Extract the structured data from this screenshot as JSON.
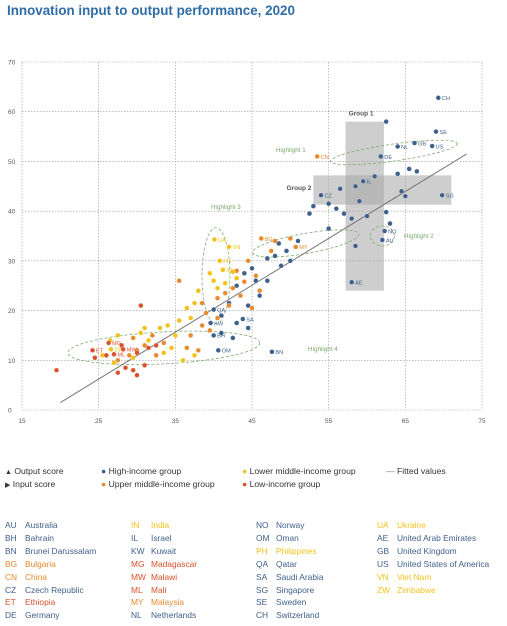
{
  "title": "Innovation input to output performance, 2020",
  "colors": {
    "title": "#2f6da6",
    "high_income": "#3e5f8a",
    "upper_middle": "#e88a2e",
    "lower_middle": "#f2c21b",
    "low_income": "#d9522d",
    "fitted": "#777777",
    "highlight": "#7cab6f",
    "group_box": "#a6a6a6"
  },
  "legend": {
    "output_score": "Output score",
    "input_score": "Input score",
    "high_income": "High-income group",
    "upper_middle": "Upper middle-income group",
    "lower_middle": "Lower middle-income group",
    "low_income": "Low-income group",
    "fitted": "Fitted values"
  },
  "annotations": {
    "group1": "Group 1",
    "group2": "Group 2",
    "highlight1": "Highlight 1",
    "highlight2": "Highlight 2",
    "highlight3": "Highlight 3",
    "highlight4": "Highlight 4"
  },
  "chart_data": {
    "type": "scatter",
    "xlim": [
      15,
      75
    ],
    "ylim": [
      0,
      70
    ],
    "x_ticks": [
      15,
      25,
      35,
      45,
      55,
      65,
      75
    ],
    "y_ticks": [
      0,
      10,
      20,
      30,
      40,
      50,
      60,
      70
    ],
    "grid": true,
    "fitted_line": {
      "x": [
        20,
        73
      ],
      "y": [
        1.5,
        51.5
      ]
    },
    "groups": {
      "high": "High-income group",
      "upper": "Upper middle-income group",
      "lower": "Lower middle-income group",
      "low": "Low-income group"
    },
    "labeled_points": [
      {
        "label": "CH",
        "x": 69.3,
        "y": 62.8,
        "group": "high"
      },
      {
        "label": "SE",
        "x": 69.0,
        "y": 56.0,
        "group": "high"
      },
      {
        "label": "GB",
        "x": 66.2,
        "y": 53.7,
        "group": "high"
      },
      {
        "label": "US",
        "x": 68.5,
        "y": 53.1,
        "group": "high"
      },
      {
        "label": "NL",
        "x": 64.0,
        "y": 53.0,
        "group": "high"
      },
      {
        "label": "DE",
        "x": 61.8,
        "y": 51.0,
        "group": "high"
      },
      {
        "label": "CN",
        "x": 53.5,
        "y": 51.0,
        "group": "upper"
      },
      {
        "label": "IL",
        "x": 59.5,
        "y": 46.0,
        "group": "high"
      },
      {
        "label": "CZ",
        "x": 54.0,
        "y": 43.2,
        "group": "high"
      },
      {
        "label": "SG",
        "x": 69.8,
        "y": 43.2,
        "group": "high"
      },
      {
        "label": "NO",
        "x": 62.3,
        "y": 36.0,
        "group": "high"
      },
      {
        "label": "AU",
        "x": 62.0,
        "y": 34.2,
        "group": "high"
      },
      {
        "label": "BG",
        "x": 46.2,
        "y": 34.5,
        "group": "upper"
      },
      {
        "label": "MY",
        "x": 50.7,
        "y": 32.8,
        "group": "upper"
      },
      {
        "label": "UA",
        "x": 40.1,
        "y": 34.3,
        "group": "lower"
      },
      {
        "label": "VN",
        "x": 42.0,
        "y": 32.8,
        "group": "lower"
      },
      {
        "label": "PH",
        "x": 40.8,
        "y": 30.0,
        "group": "lower"
      },
      {
        "label": "IN",
        "x": 41.2,
        "y": 28.2,
        "group": "lower"
      },
      {
        "label": "AE",
        "x": 58.0,
        "y": 25.7,
        "group": "high"
      },
      {
        "label": "QA",
        "x": 40.0,
        "y": 20.2,
        "group": "high"
      },
      {
        "label": "SA",
        "x": 43.8,
        "y": 18.3,
        "group": "high"
      },
      {
        "label": "KW",
        "x": 39.6,
        "y": 17.5,
        "group": "high"
      },
      {
        "label": "BH",
        "x": 40.0,
        "y": 15.0,
        "group": "high"
      },
      {
        "label": "OM",
        "x": 40.6,
        "y": 12.0,
        "group": "high"
      },
      {
        "label": "BN",
        "x": 47.6,
        "y": 11.7,
        "group": "high"
      },
      {
        "label": "MG",
        "x": 26.3,
        "y": 13.5,
        "group": "low"
      },
      {
        "label": "ZW",
        "x": 26.6,
        "y": 12.2,
        "group": "lower"
      },
      {
        "label": "MW",
        "x": 28.2,
        "y": 12.2,
        "group": "low"
      },
      {
        "label": "ET",
        "x": 24.2,
        "y": 12.0,
        "group": "low"
      },
      {
        "label": "ML",
        "x": 27.0,
        "y": 11.2,
        "group": "low"
      }
    ],
    "other_points": [
      {
        "x": 62.5,
        "y": 58.0,
        "group": "high"
      },
      {
        "x": 65.5,
        "y": 48.5,
        "group": "high"
      },
      {
        "x": 64.0,
        "y": 47.5,
        "group": "high"
      },
      {
        "x": 66.5,
        "y": 48.0,
        "group": "high"
      },
      {
        "x": 61.0,
        "y": 47.0,
        "group": "high"
      },
      {
        "x": 58.5,
        "y": 45.0,
        "group": "high"
      },
      {
        "x": 64.5,
        "y": 44.0,
        "group": "high"
      },
      {
        "x": 65.0,
        "y": 43.0,
        "group": "high"
      },
      {
        "x": 56.5,
        "y": 44.5,
        "group": "high"
      },
      {
        "x": 59.0,
        "y": 42.0,
        "group": "high"
      },
      {
        "x": 55.0,
        "y": 41.5,
        "group": "high"
      },
      {
        "x": 56.0,
        "y": 40.5,
        "group": "high"
      },
      {
        "x": 53.0,
        "y": 41.0,
        "group": "high"
      },
      {
        "x": 52.5,
        "y": 39.5,
        "group": "high"
      },
      {
        "x": 57.0,
        "y": 39.5,
        "group": "high"
      },
      {
        "x": 58.0,
        "y": 38.5,
        "group": "high"
      },
      {
        "x": 62.5,
        "y": 39.8,
        "group": "high"
      },
      {
        "x": 60.0,
        "y": 39.0,
        "group": "high"
      },
      {
        "x": 63.0,
        "y": 37.5,
        "group": "high"
      },
      {
        "x": 55.0,
        "y": 36.5,
        "group": "high"
      },
      {
        "x": 58.5,
        "y": 33.0,
        "group": "high"
      },
      {
        "x": 51.0,
        "y": 34.0,
        "group": "high"
      },
      {
        "x": 48.5,
        "y": 33.5,
        "group": "high"
      },
      {
        "x": 49.5,
        "y": 32.0,
        "group": "high"
      },
      {
        "x": 48.0,
        "y": 31.0,
        "group": "high"
      },
      {
        "x": 47.0,
        "y": 30.5,
        "group": "high"
      },
      {
        "x": 50.0,
        "y": 30.0,
        "group": "high"
      },
      {
        "x": 48.8,
        "y": 29.0,
        "group": "high"
      },
      {
        "x": 45.0,
        "y": 28.5,
        "group": "high"
      },
      {
        "x": 44.0,
        "y": 27.5,
        "group": "high"
      },
      {
        "x": 45.5,
        "y": 26.0,
        "group": "high"
      },
      {
        "x": 43.0,
        "y": 25.0,
        "group": "high"
      },
      {
        "x": 47.0,
        "y": 26.0,
        "group": "high"
      },
      {
        "x": 46.0,
        "y": 23.0,
        "group": "high"
      },
      {
        "x": 42.0,
        "y": 21.5,
        "group": "high"
      },
      {
        "x": 44.5,
        "y": 21.0,
        "group": "high"
      },
      {
        "x": 41.0,
        "y": 19.0,
        "group": "high"
      },
      {
        "x": 43.0,
        "y": 17.5,
        "group": "high"
      },
      {
        "x": 44.5,
        "y": 16.5,
        "group": "high"
      },
      {
        "x": 42.5,
        "y": 14.5,
        "group": "high"
      },
      {
        "x": 41.0,
        "y": 15.5,
        "group": "high"
      },
      {
        "x": 50.0,
        "y": 34.5,
        "group": "upper"
      },
      {
        "x": 48.0,
        "y": 34.0,
        "group": "upper"
      },
      {
        "x": 47.5,
        "y": 32.0,
        "group": "upper"
      },
      {
        "x": 44.5,
        "y": 30.0,
        "group": "upper"
      },
      {
        "x": 43.0,
        "y": 28.0,
        "group": "upper"
      },
      {
        "x": 45.5,
        "y": 27.0,
        "group": "upper"
      },
      {
        "x": 44.0,
        "y": 25.8,
        "group": "upper"
      },
      {
        "x": 42.5,
        "y": 24.5,
        "group": "upper"
      },
      {
        "x": 46.0,
        "y": 24.0,
        "group": "upper"
      },
      {
        "x": 43.5,
        "y": 23.0,
        "group": "upper"
      },
      {
        "x": 41.5,
        "y": 23.5,
        "group": "upper"
      },
      {
        "x": 42.0,
        "y": 21.0,
        "group": "upper"
      },
      {
        "x": 45.0,
        "y": 20.5,
        "group": "upper"
      },
      {
        "x": 40.5,
        "y": 22.5,
        "group": "upper"
      },
      {
        "x": 38.5,
        "y": 21.5,
        "group": "upper"
      },
      {
        "x": 39.0,
        "y": 19.5,
        "group": "upper"
      },
      {
        "x": 40.5,
        "y": 18.5,
        "group": "upper"
      },
      {
        "x": 38.5,
        "y": 17.0,
        "group": "upper"
      },
      {
        "x": 39.5,
        "y": 16.0,
        "group": "upper"
      },
      {
        "x": 37.0,
        "y": 15.0,
        "group": "upper"
      },
      {
        "x": 35.5,
        "y": 26.0,
        "group": "upper"
      },
      {
        "x": 33.5,
        "y": 13.5,
        "group": "upper"
      },
      {
        "x": 32.0,
        "y": 15.0,
        "group": "upper"
      },
      {
        "x": 31.0,
        "y": 13.0,
        "group": "upper"
      },
      {
        "x": 30.0,
        "y": 12.0,
        "group": "upper"
      },
      {
        "x": 32.5,
        "y": 11.0,
        "group": "upper"
      },
      {
        "x": 29.0,
        "y": 11.0,
        "group": "upper"
      },
      {
        "x": 27.5,
        "y": 10.0,
        "group": "upper"
      },
      {
        "x": 29.5,
        "y": 14.5,
        "group": "upper"
      },
      {
        "x": 36.5,
        "y": 12.5,
        "group": "upper"
      },
      {
        "x": 38.0,
        "y": 12.0,
        "group": "upper"
      },
      {
        "x": 39.5,
        "y": 27.5,
        "group": "lower"
      },
      {
        "x": 42.5,
        "y": 27.8,
        "group": "lower"
      },
      {
        "x": 43.0,
        "y": 26.5,
        "group": "lower"
      },
      {
        "x": 40.0,
        "y": 26.0,
        "group": "lower"
      },
      {
        "x": 41.5,
        "y": 25.5,
        "group": "lower"
      },
      {
        "x": 38.0,
        "y": 24.0,
        "group": "lower"
      },
      {
        "x": 40.5,
        "y": 24.5,
        "group": "lower"
      },
      {
        "x": 37.5,
        "y": 21.5,
        "group": "lower"
      },
      {
        "x": 36.5,
        "y": 20.5,
        "group": "lower"
      },
      {
        "x": 35.5,
        "y": 18.0,
        "group": "lower"
      },
      {
        "x": 34.0,
        "y": 17.0,
        "group": "lower"
      },
      {
        "x": 33.0,
        "y": 16.5,
        "group": "lower"
      },
      {
        "x": 37.0,
        "y": 18.5,
        "group": "lower"
      },
      {
        "x": 35.0,
        "y": 15.0,
        "group": "lower"
      },
      {
        "x": 34.5,
        "y": 12.5,
        "group": "lower"
      },
      {
        "x": 31.0,
        "y": 16.5,
        "group": "lower"
      },
      {
        "x": 30.5,
        "y": 15.5,
        "group": "lower"
      },
      {
        "x": 31.5,
        "y": 14.0,
        "group": "lower"
      },
      {
        "x": 33.5,
        "y": 11.5,
        "group": "lower"
      },
      {
        "x": 29.5,
        "y": 10.5,
        "group": "lower"
      },
      {
        "x": 27.5,
        "y": 15.0,
        "group": "lower"
      },
      {
        "x": 26.5,
        "y": 14.0,
        "group": "lower"
      },
      {
        "x": 25.5,
        "y": 11.0,
        "group": "lower"
      },
      {
        "x": 27.0,
        "y": 9.5,
        "group": "lower"
      },
      {
        "x": 37.5,
        "y": 11.0,
        "group": "lower"
      },
      {
        "x": 36.0,
        "y": 10.0,
        "group": "lower"
      },
      {
        "x": 30.5,
        "y": 21.0,
        "group": "low"
      },
      {
        "x": 31.5,
        "y": 12.5,
        "group": "low"
      },
      {
        "x": 30.0,
        "y": 11.5,
        "group": "low"
      },
      {
        "x": 28.5,
        "y": 8.5,
        "group": "low"
      },
      {
        "x": 29.5,
        "y": 8.0,
        "group": "low"
      },
      {
        "x": 27.5,
        "y": 7.5,
        "group": "low"
      },
      {
        "x": 30.0,
        "y": 7.0,
        "group": "low"
      },
      {
        "x": 31.0,
        "y": 9.0,
        "group": "low"
      },
      {
        "x": 28.0,
        "y": 13.0,
        "group": "low"
      },
      {
        "x": 24.5,
        "y": 10.5,
        "group": "low"
      },
      {
        "x": 19.5,
        "y": 8.0,
        "group": "low"
      },
      {
        "x": 32.5,
        "y": 13.0,
        "group": "low"
      },
      {
        "x": 26.0,
        "y": 11.0,
        "group": "low"
      }
    ]
  },
  "country_codes": [
    {
      "code": "AU",
      "name": "Australia",
      "group": "high"
    },
    {
      "code": "BH",
      "name": "Bahrain",
      "group": "high"
    },
    {
      "code": "BN",
      "name": "Brunei Darussalam",
      "group": "high"
    },
    {
      "code": "BG",
      "name": "Bulgaria",
      "group": "upper"
    },
    {
      "code": "CN",
      "name": "China",
      "group": "upper"
    },
    {
      "code": "CZ",
      "name": "Czech Republic",
      "group": "high"
    },
    {
      "code": "ET",
      "name": "Ethiopia",
      "group": "low"
    },
    {
      "code": "DE",
      "name": "Germany",
      "group": "high"
    },
    {
      "code": "IN",
      "name": "India",
      "group": "lower"
    },
    {
      "code": "IL",
      "name": "Israel",
      "group": "high"
    },
    {
      "code": "KW",
      "name": "Kuwait",
      "group": "high"
    },
    {
      "code": "MG",
      "name": "Madagascar",
      "group": "low"
    },
    {
      "code": "MW",
      "name": "Malawi",
      "group": "low"
    },
    {
      "code": "ML",
      "name": "Mali",
      "group": "low"
    },
    {
      "code": "MY",
      "name": "Malaysia",
      "group": "upper"
    },
    {
      "code": "NL",
      "name": "Netherlands",
      "group": "high"
    },
    {
      "code": "NO",
      "name": "Norway",
      "group": "high"
    },
    {
      "code": "OM",
      "name": "Oman",
      "group": "high"
    },
    {
      "code": "PH",
      "name": "Philippines",
      "group": "lower"
    },
    {
      "code": "QA",
      "name": "Qatar",
      "group": "high"
    },
    {
      "code": "SA",
      "name": "Saudi Arabia",
      "group": "high"
    },
    {
      "code": "SG",
      "name": "Singapore",
      "group": "high"
    },
    {
      "code": "SE",
      "name": "Sweden",
      "group": "high"
    },
    {
      "code": "CH",
      "name": "Switzerland",
      "group": "high"
    },
    {
      "code": "UA",
      "name": "Ukraine",
      "group": "lower"
    },
    {
      "code": "AE",
      "name": "United Arab Emirates",
      "group": "high"
    },
    {
      "code": "GB",
      "name": "United Kingdom",
      "group": "high"
    },
    {
      "code": "US",
      "name": "United States of America",
      "group": "high"
    },
    {
      "code": "VN",
      "name": "Viet Nam",
      "group": "lower"
    },
    {
      "code": "ZW",
      "name": "Zimbabwe",
      "group": "lower"
    }
  ]
}
